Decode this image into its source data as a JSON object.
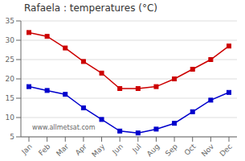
{
  "chart_data": {
    "type": "line",
    "title": "Rafaela : temperatures (°C)",
    "categories": [
      "Jan",
      "Feb",
      "Mar",
      "Apr",
      "May",
      "Jun",
      "Jul",
      "Aug",
      "Sep",
      "Oct",
      "Nov",
      "Dec"
    ],
    "series": [
      {
        "color": "#cc0000",
        "values": [
          32,
          31,
          28,
          24.5,
          21.5,
          17.5,
          17.5,
          18,
          20,
          22.5,
          25,
          28.5
        ]
      },
      {
        "color": "#0000cc",
        "values": [
          18,
          17,
          16,
          12.5,
          9.5,
          6.5,
          6,
          7,
          8.5,
          11.5,
          14.5,
          16.5
        ]
      }
    ],
    "ylim": [
      5,
      35
    ],
    "yticks": [
      5,
      10,
      15,
      20,
      25,
      30,
      35
    ],
    "grid": true,
    "marker": "square",
    "annotations": [
      "www.allmetsat.com"
    ]
  }
}
